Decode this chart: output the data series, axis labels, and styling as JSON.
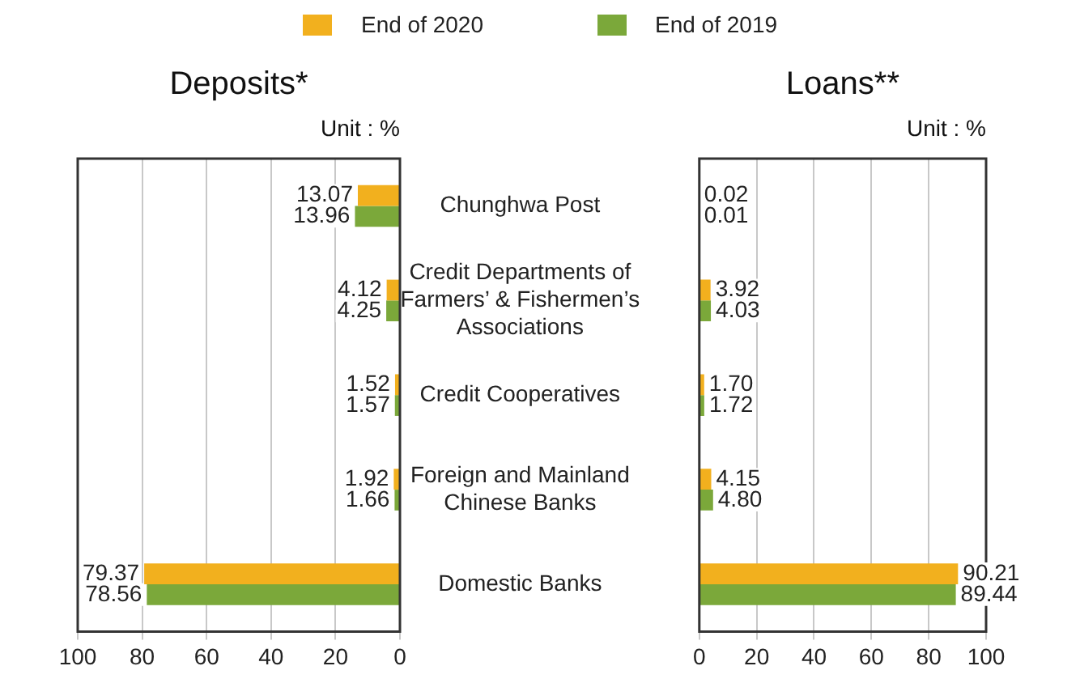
{
  "chart_data": [
    {
      "type": "bar",
      "orientation": "horizontal",
      "title": "Deposits*",
      "subtitle": "Unit : %",
      "categories": [
        "Chunghwa Post",
        "Credit Departments of Farmers’ & Fishermen’s Associations",
        "Credit Cooperatives",
        "Foreign and Mainland Chinese Banks",
        "Domestic Banks"
      ],
      "series": [
        {
          "name": "End of 2020",
          "color": "#f2b01e",
          "values": [
            13.07,
            4.12,
            1.52,
            1.92,
            79.37
          ],
          "value_labels": [
            "13.07",
            "4.12",
            "1.52",
            "1.92",
            "79.37"
          ]
        },
        {
          "name": "End of 2019",
          "color": "#7ba83a",
          "values": [
            13.96,
            4.25,
            1.57,
            1.66,
            78.56
          ],
          "value_labels": [
            "13.96",
            "4.25",
            "1.57",
            "1.66",
            "78.56"
          ]
        }
      ],
      "xlim": [
        100,
        0
      ],
      "xticks": [
        0,
        20,
        40,
        60,
        80,
        100
      ],
      "grid": "x",
      "legend": "top"
    },
    {
      "type": "bar",
      "orientation": "horizontal",
      "title": "Loans**",
      "subtitle": "Unit : %",
      "categories": [
        null,
        null,
        null,
        null,
        null
      ],
      "series": [
        {
          "color": "#f2b01e",
          "values": [
            0.02,
            3.92,
            1.7,
            4.15,
            90.21
          ],
          "value_labels": [
            "0.02",
            "3.92",
            "1.70",
            "4.15",
            "90.21"
          ]
        },
        {
          "color": "#7ba83a",
          "values": [
            0.01,
            4.03,
            1.72,
            4.8,
            89.44
          ],
          "value_labels": [
            "0.01",
            "4.03",
            "1.72",
            "4.80",
            "89.44"
          ]
        }
      ],
      "xlim": [
        0,
        100
      ],
      "xticks": [
        0,
        20,
        40,
        60,
        80,
        100
      ],
      "grid": "x",
      "tick_labels": "x"
    }
  ]
}
